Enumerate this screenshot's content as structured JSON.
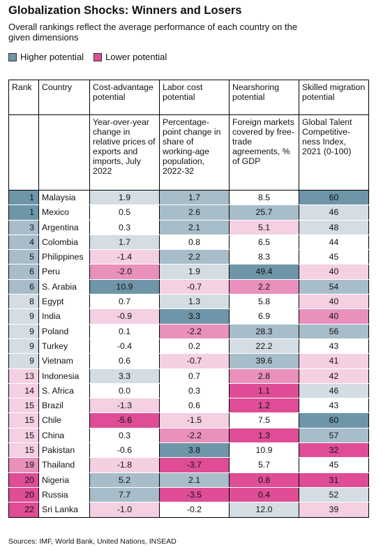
{
  "header": {
    "title": "Globalization Shocks: Winners and Losers",
    "subtitle": "Overall rankings reflect the average performance of each country on the given dimensions"
  },
  "legend": [
    {
      "label": "Higher potential",
      "color": "#6e96a8"
    },
    {
      "label": "Lower potential",
      "color": "#de4d95"
    }
  ],
  "table": {
    "header_top": [
      "Rank",
      "Country",
      "Cost-advantage potential",
      "Labor cost potential",
      "Nearshoring potential",
      "Skilled migration potential"
    ],
    "header_sub": [
      "Year-over-year change in relative prices of exports and imports, July 2022",
      "Percentage-point change in share of working-age population, 2022-32",
      "Foreign markets covered by free-trade agreements, % of GDP",
      "Global Talent Competitive-ness Index, 2021 (0-100)"
    ],
    "rows": [
      {
        "cells": [
          "1",
          "Malaysia",
          "1.9",
          "1.7",
          "8.5",
          "60"
        ],
        "colors": [
          "#6e96a8",
          "#d3dde3",
          "#a7bdc9",
          "#ffffff",
          "#6e96a8"
        ]
      },
      {
        "cells": [
          "1",
          "Mexico",
          "0.5",
          "2.6",
          "25.7",
          "46"
        ],
        "colors": [
          "#6e96a8",
          "#ffffff",
          "#a7bdc9",
          "#a7bdc9",
          "#d3dde3"
        ]
      },
      {
        "cells": [
          "3",
          "Argentina",
          "0.3",
          "2.1",
          "5.1",
          "48"
        ],
        "colors": [
          "#a7bdc9",
          "#ffffff",
          "#a7bdc9",
          "#f4d0e2",
          "#d3dde3"
        ]
      },
      {
        "cells": [
          "4",
          "Colombia",
          "1.7",
          "0.8",
          "6.5",
          "44"
        ],
        "colors": [
          "#a7bdc9",
          "#d3dde3",
          "#ffffff",
          "#ffffff",
          "#ffffff"
        ]
      },
      {
        "cells": [
          "5",
          "Philippines",
          "-1.4",
          "2.2",
          "8.3",
          "45"
        ],
        "colors": [
          "#a7bdc9",
          "#f4d0e2",
          "#a7bdc9",
          "#ffffff",
          "#ffffff"
        ]
      },
      {
        "cells": [
          "6",
          "Peru",
          "-2.0",
          "1.9",
          "49.4",
          "40"
        ],
        "colors": [
          "#a7bdc9",
          "#e990bd",
          "#d3dde3",
          "#6e96a8",
          "#f4d0e2"
        ]
      },
      {
        "cells": [
          "6",
          "S. Arabia",
          "10.9",
          "-0.7",
          "2.2",
          "54"
        ],
        "colors": [
          "#a7bdc9",
          "#6e96a8",
          "#f4d0e2",
          "#e990bd",
          "#a7bdc9"
        ]
      },
      {
        "cells": [
          "8",
          "Egypt",
          "0.7",
          "1.3",
          "5.8",
          "40"
        ],
        "colors": [
          "#d3dde3",
          "#ffffff",
          "#d3dde3",
          "#ffffff",
          "#f4d0e2"
        ]
      },
      {
        "cells": [
          "9",
          "India",
          "-0.9",
          "3.3",
          "6.9",
          "40"
        ],
        "colors": [
          "#d3dde3",
          "#f4d0e2",
          "#6e96a8",
          "#ffffff",
          "#e990bd"
        ]
      },
      {
        "cells": [
          "9",
          "Poland",
          "0.1",
          "-2.2",
          "28.3",
          "56"
        ],
        "colors": [
          "#d3dde3",
          "#ffffff",
          "#e990bd",
          "#a7bdc9",
          "#a7bdc9"
        ]
      },
      {
        "cells": [
          "9",
          "Turkey",
          "-0.4",
          "0.2",
          "22.2",
          "43"
        ],
        "colors": [
          "#d3dde3",
          "#ffffff",
          "#ffffff",
          "#d3dde3",
          "#ffffff"
        ]
      },
      {
        "cells": [
          "9",
          "Vietnam",
          "0.6",
          "-0.7",
          "39.6",
          "41"
        ],
        "colors": [
          "#d3dde3",
          "#ffffff",
          "#f4d0e2",
          "#a7bdc9",
          "#f4d0e2"
        ]
      },
      {
        "cells": [
          "13",
          "Indonesia",
          "3.3",
          "0.7",
          "2.8",
          "42"
        ],
        "colors": [
          "#f4d0e2",
          "#d3dde3",
          "#ffffff",
          "#e990bd",
          "#f4d0e2"
        ]
      },
      {
        "cells": [
          "14",
          "S. Africa",
          "0.0",
          "0.3",
          "1.1",
          "46"
        ],
        "colors": [
          "#f4d0e2",
          "#ffffff",
          "#ffffff",
          "#de4d95",
          "#d3dde3"
        ]
      },
      {
        "cells": [
          "15",
          "Brazil",
          "-1.3",
          "0.6",
          "1.2",
          "43"
        ],
        "colors": [
          "#f4d0e2",
          "#f4d0e2",
          "#ffffff",
          "#de4d95",
          "#ffffff"
        ]
      },
      {
        "cells": [
          "15",
          "Chile",
          "-5.6",
          "-1.5",
          "7.5",
          "60"
        ],
        "colors": [
          "#f4d0e2",
          "#de4d95",
          "#f4d0e2",
          "#ffffff",
          "#6e96a8"
        ]
      },
      {
        "cells": [
          "15",
          "China",
          "0.3",
          "-2.2",
          "1.3",
          "57"
        ],
        "colors": [
          "#f4d0e2",
          "#ffffff",
          "#e990bd",
          "#de4d95",
          "#a7bdc9"
        ]
      },
      {
        "cells": [
          "15",
          "Pakistan",
          "-0.6",
          "3.8",
          "10.9",
          "32"
        ],
        "colors": [
          "#f4d0e2",
          "#ffffff",
          "#6e96a8",
          "#ffffff",
          "#de4d95"
        ]
      },
      {
        "cells": [
          "19",
          "Thailand",
          "-1.8",
          "-3.7",
          "5.7",
          "45"
        ],
        "colors": [
          "#e990bd",
          "#f4d0e2",
          "#de4d95",
          "#ffffff",
          "#ffffff"
        ]
      },
      {
        "cells": [
          "20",
          "Nigeria",
          "5.2",
          "2.1",
          "0.8",
          "31"
        ],
        "colors": [
          "#de4d95",
          "#a7bdc9",
          "#a7bdc9",
          "#de4d95",
          "#de4d95"
        ]
      },
      {
        "cells": [
          "20",
          "Russia",
          "7.7",
          "-3.5",
          "0.4",
          "52"
        ],
        "colors": [
          "#de4d95",
          "#a7bdc9",
          "#de4d95",
          "#de4d95",
          "#d3dde3"
        ]
      },
      {
        "cells": [
          "22",
          "Sri Lanka",
          "-1.0",
          "-0.2",
          "12.0",
          "39"
        ],
        "colors": [
          "#de4d95",
          "#f4d0e2",
          "#ffffff",
          "#d3dde3",
          "#f4d0e2"
        ]
      }
    ]
  },
  "footer": {
    "source": "Sources: IMF, World Bank, United Nations, INSEAD"
  }
}
